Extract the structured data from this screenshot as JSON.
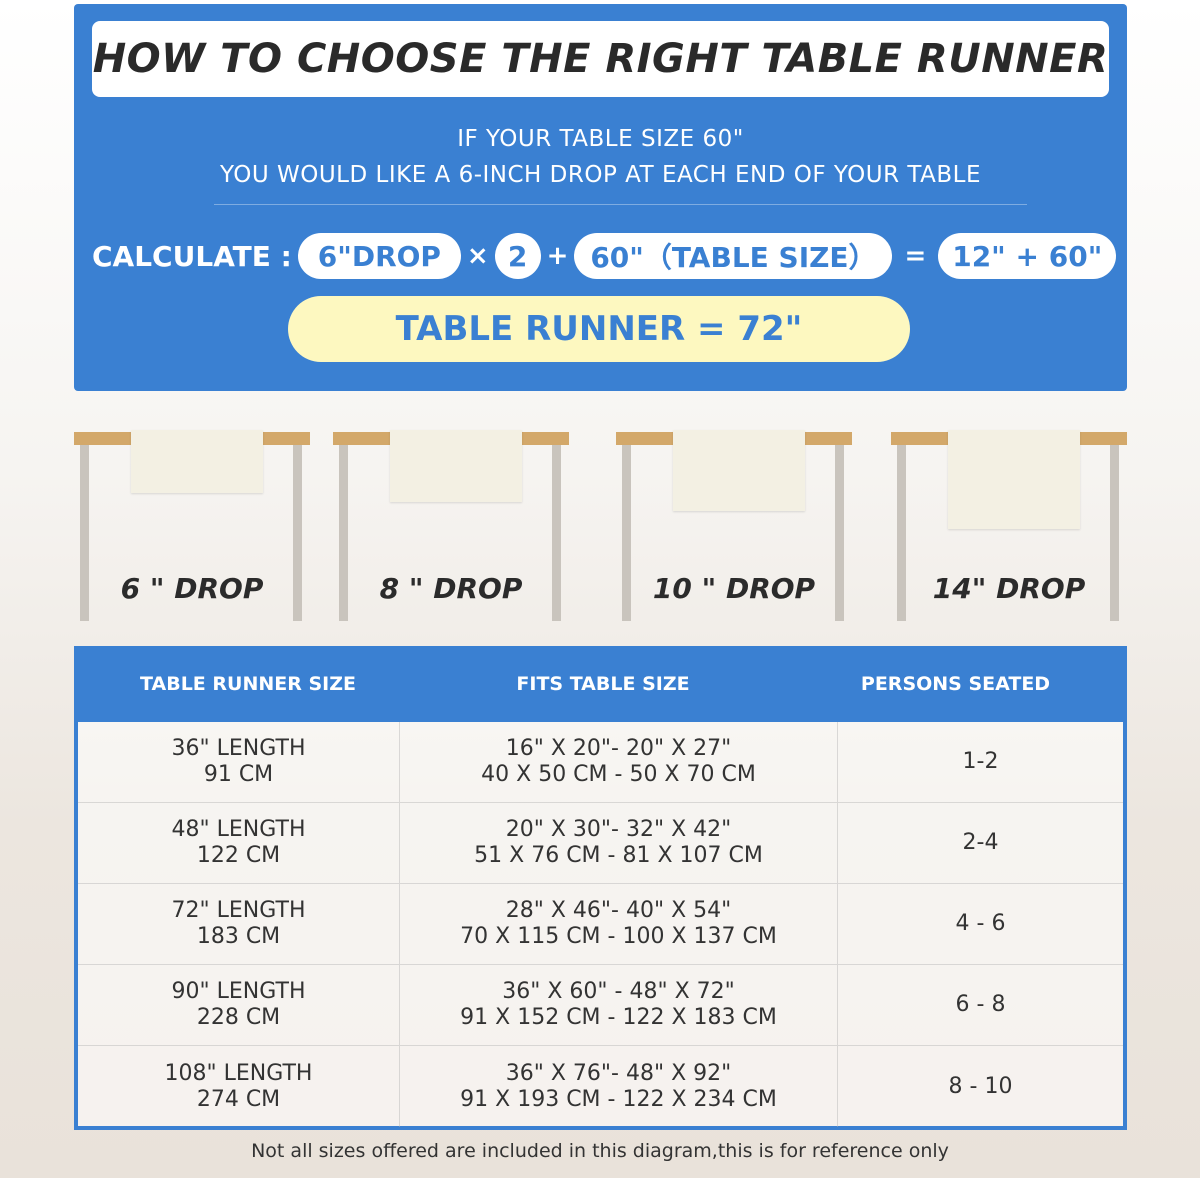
{
  "title": "HOW TO CHOOSE THE RIGHT TABLE RUNNER",
  "subtitle_lines": [
    "IF YOUR TABLE SIZE 60\"",
    "YOU WOULD LIKE A 6-INCH DROP AT EACH END OF YOUR TABLE"
  ],
  "calc": {
    "label": "CALCULATE :",
    "drop": "6\"DROP",
    "times": "×",
    "multiplier": "2",
    "plus": "+",
    "table_size": "60\"（TABLE SIZE）",
    "equals": "=",
    "sum": "12\" + 60\"",
    "result": "TABLE RUNNER = 72\""
  },
  "drops": [
    {
      "label": "6 \" DROP",
      "inches": 6
    },
    {
      "label": "8 \" DROP",
      "inches": 8
    },
    {
      "label": "10 \" DROP",
      "inches": 10
    },
    {
      "label": "14\" DROP",
      "inches": 14
    }
  ],
  "colors": {
    "primary": "#3a80d2",
    "highlight": "#fdf8c0",
    "tabletop": "#d3a86a"
  },
  "table": {
    "headers": [
      "TABLE RUNNER SIZE",
      "FITS TABLE SIZE",
      "PERSONS SEATED"
    ],
    "rows": [
      {
        "size": [
          "36\" LENGTH",
          "91 CM"
        ],
        "fits": [
          "16\" X 20\"- 20\" X 27\"",
          "40 X 50 CM - 50 X 70 CM"
        ],
        "persons": "1-2"
      },
      {
        "size": [
          "48\" LENGTH",
          "122 CM"
        ],
        "fits": [
          "20\" X 30\"- 32\" X 42\"",
          "51 X 76 CM - 81 X 107 CM"
        ],
        "persons": "2-4"
      },
      {
        "size": [
          "72\" LENGTH",
          "183 CM"
        ],
        "fits": [
          "28\" X 46\"- 40\" X 54\"",
          "70 X 115 CM - 100 X 137 CM"
        ],
        "persons": "4 - 6"
      },
      {
        "size": [
          "90\" LENGTH",
          "228 CM"
        ],
        "fits": [
          "36\" X 60\" - 48\" X 72\"",
          "91 X 152 CM - 122 X 183 CM"
        ],
        "persons": "6 - 8"
      },
      {
        "size": [
          "108\" LENGTH",
          "274 CM"
        ],
        "fits": [
          "36\" X 76\"- 48\" X 92\"",
          "91 X 193 CM - 122 X 234 CM"
        ],
        "persons": "8 - 10"
      }
    ]
  },
  "footnote": "Not all sizes offered are included in this diagram,this is for reference only"
}
